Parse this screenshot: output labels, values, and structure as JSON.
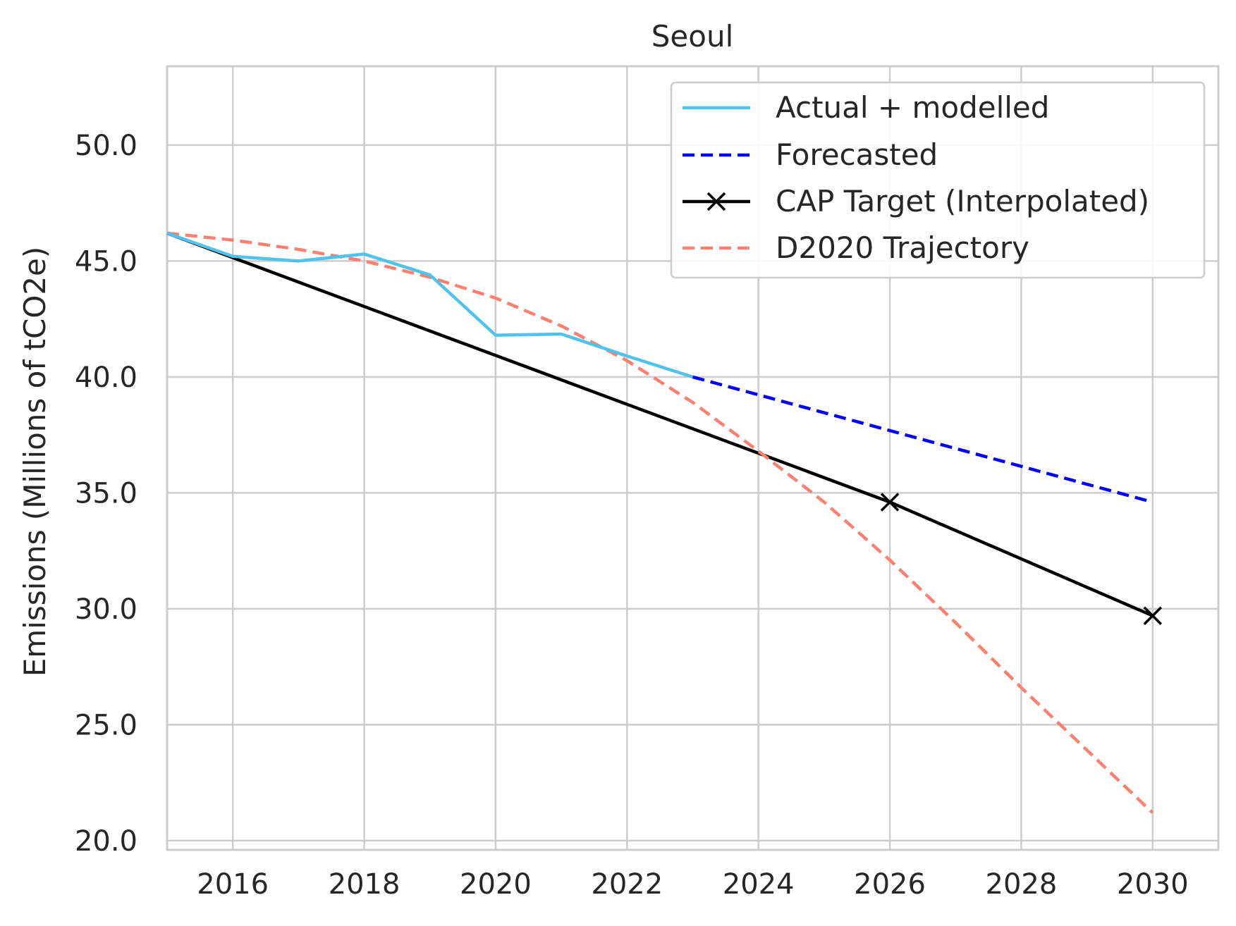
{
  "chart_data": {
    "type": "line",
    "title": "Seoul",
    "xlabel": "",
    "ylabel": "Emissions (Millions of tCO2e)",
    "xlim": [
      2015,
      2031
    ],
    "ylim": [
      19.6,
      53.4
    ],
    "x_ticks": [
      2016,
      2018,
      2020,
      2022,
      2024,
      2026,
      2028,
      2030
    ],
    "y_ticks": [
      20.0,
      25.0,
      30.0,
      35.0,
      40.0,
      45.0,
      50.0
    ],
    "y_tick_labels": [
      "20.0",
      "25.0",
      "30.0",
      "35.0",
      "40.0",
      "45.0",
      "50.0"
    ],
    "grid": true,
    "legend_position": "top-right",
    "series": [
      {
        "name": "Actual + modelled",
        "color": "#4fc3ea",
        "style": "solid",
        "x": [
          2015,
          2016,
          2017,
          2018,
          2019,
          2020,
          2021,
          2022,
          2023
        ],
        "y": [
          46.2,
          45.2,
          45.0,
          45.3,
          44.4,
          41.8,
          41.85,
          40.9,
          40.0
        ]
      },
      {
        "name": "Forecasted",
        "color": "#0000ff",
        "style": "dashed",
        "x": [
          2023,
          2030
        ],
        "y": [
          40.0,
          34.6
        ]
      },
      {
        "name": "CAP Target (Interpolated)",
        "color": "#000000",
        "style": "solid",
        "marker": "x",
        "x": [
          2015,
          2026,
          2030
        ],
        "y": [
          46.2,
          34.6,
          29.7
        ],
        "marker_x": [
          2026,
          2030
        ],
        "marker_y": [
          34.6,
          29.7
        ]
      },
      {
        "name": "D2020 Trajectory",
        "color": "#fa8072",
        "style": "dashed",
        "x": [
          2015,
          2016,
          2017,
          2018,
          2019,
          2020,
          2021,
          2022,
          2023,
          2024,
          2025,
          2026,
          2027,
          2028,
          2029,
          2030
        ],
        "y": [
          46.2,
          45.9,
          45.5,
          45.0,
          44.3,
          43.4,
          42.2,
          40.7,
          38.9,
          36.8,
          34.6,
          32.1,
          29.4,
          26.6,
          23.9,
          21.2
        ]
      }
    ]
  }
}
